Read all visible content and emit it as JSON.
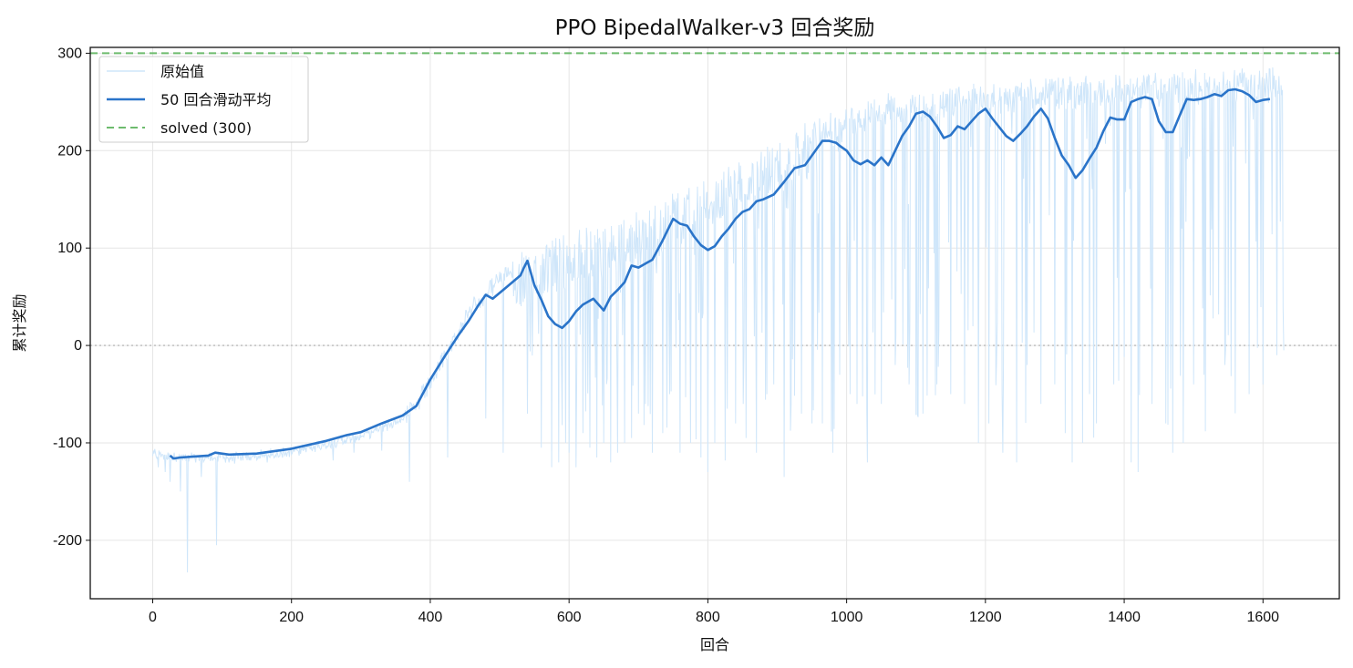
{
  "chart_data": {
    "type": "line",
    "title": "PPO BipedalWalker-v3 回合奖励",
    "xlabel": "回合",
    "ylabel": "累计奖励",
    "xlim": [
      -90,
      1710
    ],
    "ylim": [
      -260,
      306
    ],
    "xticks": [
      0,
      200,
      400,
      600,
      800,
      1000,
      1200,
      1400,
      1600
    ],
    "yticks": [
      300,
      200,
      100,
      0,
      -100,
      -200
    ],
    "ytick_labels": [
      "300",
      "200",
      "100",
      "0",
      "-100",
      "-200"
    ],
    "grid": true,
    "legend_position": "upper-left",
    "hlines": [
      {
        "y": 0,
        "style": "dotted",
        "color": "#bbbbbb"
      }
    ],
    "series": [
      {
        "name": "原始值",
        "style": "raw",
        "color": "#cfe6fa",
        "summary": {
          "x_range": [
            0,
            1630
          ]
        },
        "keypoints": [
          [
            0,
            -108
          ],
          [
            50,
            -113
          ],
          [
            100,
            -112
          ],
          [
            150,
            -111
          ],
          [
            200,
            -106
          ],
          [
            250,
            -98
          ],
          [
            300,
            -90
          ],
          [
            350,
            -75
          ],
          [
            380,
            -60
          ],
          [
            400,
            -35
          ],
          [
            420,
            -10
          ],
          [
            440,
            15
          ],
          [
            460,
            40
          ],
          [
            480,
            55
          ],
          [
            500,
            70
          ],
          [
            520,
            80
          ],
          [
            540,
            95
          ],
          [
            560,
            100
          ],
          [
            580,
            105
          ],
          [
            600,
            110
          ],
          [
            650,
            120
          ],
          [
            700,
            130
          ],
          [
            750,
            150
          ],
          [
            800,
            165
          ],
          [
            850,
            185
          ],
          [
            900,
            205
          ],
          [
            950,
            225
          ],
          [
            1000,
            240
          ],
          [
            1050,
            250
          ],
          [
            1100,
            255
          ],
          [
            1150,
            258
          ],
          [
            1200,
            262
          ],
          [
            1250,
            265
          ],
          [
            1300,
            268
          ],
          [
            1350,
            270
          ],
          [
            1400,
            272
          ],
          [
            1450,
            273
          ],
          [
            1500,
            275
          ],
          [
            1550,
            276
          ],
          [
            1600,
            277
          ],
          [
            1630,
            277
          ]
        ],
        "spikes": [
          [
            8,
            -125
          ],
          [
            18,
            -130
          ],
          [
            25,
            -140
          ],
          [
            40,
            -150
          ],
          [
            50,
            -233
          ],
          [
            62,
            -120
          ],
          [
            70,
            -135
          ],
          [
            82,
            -110
          ],
          [
            92,
            -205
          ],
          [
            110,
            -120
          ],
          [
            130,
            -118
          ],
          [
            165,
            -120
          ],
          [
            200,
            -112
          ],
          [
            230,
            -108
          ],
          [
            260,
            -118
          ],
          [
            290,
            -110
          ],
          [
            330,
            -108
          ],
          [
            370,
            -140
          ],
          [
            425,
            -115
          ],
          [
            480,
            -75
          ],
          [
            505,
            -110
          ],
          [
            540,
            -70
          ],
          [
            560,
            -105
          ],
          [
            575,
            -125
          ],
          [
            585,
            -120
          ],
          [
            595,
            -100
          ],
          [
            600,
            -110
          ],
          [
            610,
            -125
          ],
          [
            620,
            -90
          ],
          [
            630,
            -105
          ],
          [
            640,
            -115
          ],
          [
            650,
            -100
          ],
          [
            660,
            -120
          ],
          [
            670,
            -110
          ],
          [
            680,
            -100
          ],
          [
            690,
            -95
          ],
          [
            700,
            -70
          ],
          [
            710,
            -60
          ],
          [
            720,
            -110
          ],
          [
            735,
            -90
          ],
          [
            745,
            -50
          ],
          [
            760,
            -110
          ],
          [
            775,
            -100
          ],
          [
            790,
            -115
          ],
          [
            800,
            -130
          ],
          [
            810,
            -100
          ],
          [
            825,
            -118
          ],
          [
            840,
            -80
          ],
          [
            855,
            -95
          ],
          [
            870,
            -110
          ],
          [
            885,
            -50
          ],
          [
            895,
            -40
          ],
          [
            910,
            -135
          ],
          [
            920,
            -60
          ],
          [
            935,
            -70
          ],
          [
            950,
            -80
          ],
          [
            965,
            -80
          ],
          [
            980,
            -110
          ],
          [
            990,
            -30
          ],
          [
            1005,
            -50
          ],
          [
            1030,
            -120
          ],
          [
            1050,
            -60
          ],
          [
            1070,
            -20
          ],
          [
            1090,
            -40
          ],
          [
            1110,
            -70
          ],
          [
            1130,
            -40
          ],
          [
            1150,
            -50
          ],
          [
            1170,
            -60
          ],
          [
            1190,
            -100
          ],
          [
            1205,
            -80
          ],
          [
            1225,
            -110
          ],
          [
            1245,
            -120
          ],
          [
            1260,
            -20
          ],
          [
            1280,
            -60
          ],
          [
            1300,
            -40
          ],
          [
            1315,
            -90
          ],
          [
            1325,
            -120
          ],
          [
            1340,
            -100
          ],
          [
            1350,
            -50
          ],
          [
            1360,
            -80
          ],
          [
            1385,
            -40
          ],
          [
            1410,
            -120
          ],
          [
            1420,
            -130
          ],
          [
            1440,
            -60
          ],
          [
            1460,
            -80
          ],
          [
            1470,
            -110
          ],
          [
            1485,
            -100
          ],
          [
            1500,
            -40
          ],
          [
            1515,
            -30
          ],
          [
            1545,
            -20
          ],
          [
            1580,
            -50
          ],
          [
            1600,
            -40
          ],
          [
            1620,
            -10
          ],
          [
            1630,
            -5
          ]
        ]
      },
      {
        "name": "50 回合滑动平均",
        "style": "moving-average",
        "color": "#2a74c9",
        "points": [
          [
            25,
            -113
          ],
          [
            30,
            -116
          ],
          [
            40,
            -115
          ],
          [
            60,
            -114
          ],
          [
            80,
            -113
          ],
          [
            90,
            -110
          ],
          [
            110,
            -112
          ],
          [
            150,
            -111
          ],
          [
            200,
            -106
          ],
          [
            250,
            -98
          ],
          [
            280,
            -92
          ],
          [
            300,
            -89
          ],
          [
            330,
            -80
          ],
          [
            360,
            -72
          ],
          [
            380,
            -62
          ],
          [
            400,
            -35
          ],
          [
            420,
            -12
          ],
          [
            440,
            10
          ],
          [
            455,
            25
          ],
          [
            470,
            42
          ],
          [
            480,
            52
          ],
          [
            490,
            48
          ],
          [
            510,
            60
          ],
          [
            530,
            72
          ],
          [
            535,
            80
          ],
          [
            540,
            87
          ],
          [
            550,
            62
          ],
          [
            560,
            47
          ],
          [
            570,
            30
          ],
          [
            580,
            22
          ],
          [
            590,
            18
          ],
          [
            600,
            25
          ],
          [
            610,
            35
          ],
          [
            620,
            42
          ],
          [
            635,
            48
          ],
          [
            650,
            36
          ],
          [
            660,
            50
          ],
          [
            670,
            57
          ],
          [
            680,
            65
          ],
          [
            690,
            82
          ],
          [
            700,
            80
          ],
          [
            710,
            84
          ],
          [
            720,
            88
          ],
          [
            735,
            108
          ],
          [
            750,
            130
          ],
          [
            760,
            125
          ],
          [
            770,
            123
          ],
          [
            780,
            112
          ],
          [
            790,
            103
          ],
          [
            800,
            98
          ],
          [
            810,
            102
          ],
          [
            820,
            112
          ],
          [
            830,
            120
          ],
          [
            840,
            130
          ],
          [
            850,
            137
          ],
          [
            860,
            140
          ],
          [
            870,
            148
          ],
          [
            880,
            150
          ],
          [
            895,
            155
          ],
          [
            910,
            168
          ],
          [
            925,
            182
          ],
          [
            940,
            185
          ],
          [
            955,
            200
          ],
          [
            965,
            210
          ],
          [
            975,
            210
          ],
          [
            985,
            208
          ],
          [
            990,
            205
          ],
          [
            1000,
            200
          ],
          [
            1010,
            190
          ],
          [
            1020,
            186
          ],
          [
            1030,
            190
          ],
          [
            1040,
            185
          ],
          [
            1050,
            193
          ],
          [
            1060,
            185
          ],
          [
            1070,
            200
          ],
          [
            1080,
            215
          ],
          [
            1090,
            225
          ],
          [
            1100,
            238
          ],
          [
            1110,
            240
          ],
          [
            1120,
            235
          ],
          [
            1130,
            225
          ],
          [
            1140,
            213
          ],
          [
            1150,
            216
          ],
          [
            1160,
            225
          ],
          [
            1170,
            222
          ],
          [
            1180,
            230
          ],
          [
            1190,
            238
          ],
          [
            1200,
            243
          ],
          [
            1210,
            233
          ],
          [
            1220,
            224
          ],
          [
            1230,
            215
          ],
          [
            1240,
            210
          ],
          [
            1250,
            217
          ],
          [
            1260,
            225
          ],
          [
            1270,
            235
          ],
          [
            1280,
            243
          ],
          [
            1290,
            233
          ],
          [
            1300,
            213
          ],
          [
            1310,
            195
          ],
          [
            1320,
            185
          ],
          [
            1330,
            172
          ],
          [
            1340,
            180
          ],
          [
            1350,
            192
          ],
          [
            1360,
            203
          ],
          [
            1370,
            220
          ],
          [
            1380,
            234
          ],
          [
            1390,
            232
          ],
          [
            1400,
            232
          ],
          [
            1410,
            250
          ],
          [
            1420,
            253
          ],
          [
            1430,
            255
          ],
          [
            1440,
            253
          ],
          [
            1450,
            230
          ],
          [
            1460,
            219
          ],
          [
            1470,
            219
          ],
          [
            1480,
            236
          ],
          [
            1490,
            253
          ],
          [
            1500,
            252
          ],
          [
            1510,
            253
          ],
          [
            1520,
            255
          ],
          [
            1530,
            258
          ],
          [
            1540,
            256
          ],
          [
            1550,
            262
          ],
          [
            1560,
            263
          ],
          [
            1570,
            261
          ],
          [
            1580,
            257
          ],
          [
            1590,
            250
          ],
          [
            1600,
            252
          ],
          [
            1610,
            253
          ]
        ]
      },
      {
        "name": "solved (300)",
        "style": "dashed-hline",
        "color": "#6dbb6d",
        "y": 300
      }
    ]
  }
}
